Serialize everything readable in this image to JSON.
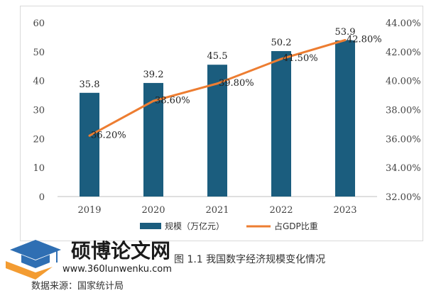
{
  "chart_data": {
    "type": "bar",
    "categories": [
      "2019",
      "2020",
      "2021",
      "2022",
      "2023"
    ],
    "series": [
      {
        "name": "规模（万亿元）",
        "type": "bar",
        "axis": "left",
        "values": [
          35.8,
          39.2,
          45.5,
          50.2,
          53.9
        ],
        "labels": [
          "35.8",
          "39.2",
          "45.5",
          "50.2",
          "53.9"
        ],
        "color": "#1b5d7e"
      },
      {
        "name": "占GDP比重",
        "type": "line",
        "axis": "right",
        "values": [
          36.2,
          38.6,
          39.8,
          41.5,
          42.8
        ],
        "labels": [
          "36.20%",
          "38.60%",
          "39.80%",
          "41.50%",
          "42.80%"
        ],
        "color": "#ed7d31"
      }
    ],
    "y_left": {
      "min": 0,
      "max": 60,
      "ticks": [
        "0",
        "10",
        "20",
        "30",
        "40",
        "50",
        "60"
      ]
    },
    "y_right": {
      "min": 32,
      "max": 44,
      "ticks": [
        "32.00%",
        "34.00%",
        "36.00%",
        "38.00%",
        "40.00%",
        "42.00%",
        "44.00%"
      ]
    },
    "legend_position": "bottom",
    "grid": false
  },
  "caption": "图 1.1 我国数字经济规模变化情况",
  "source": "数据来源：国家统计局",
  "watermark": {
    "name": "硕博论文网",
    "url": "www.360lunwenku.com"
  }
}
